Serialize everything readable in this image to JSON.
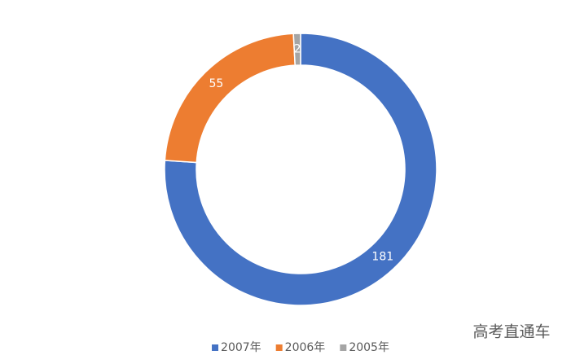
{
  "chart_data": {
    "type": "donut",
    "categories": [
      "2007年",
      "2006年",
      "2005年"
    ],
    "values": [
      181,
      55,
      2
    ],
    "colors": [
      "#4472c4",
      "#ed7d31",
      "#a5a5a5"
    ],
    "annotation": "高考直通车"
  }
}
